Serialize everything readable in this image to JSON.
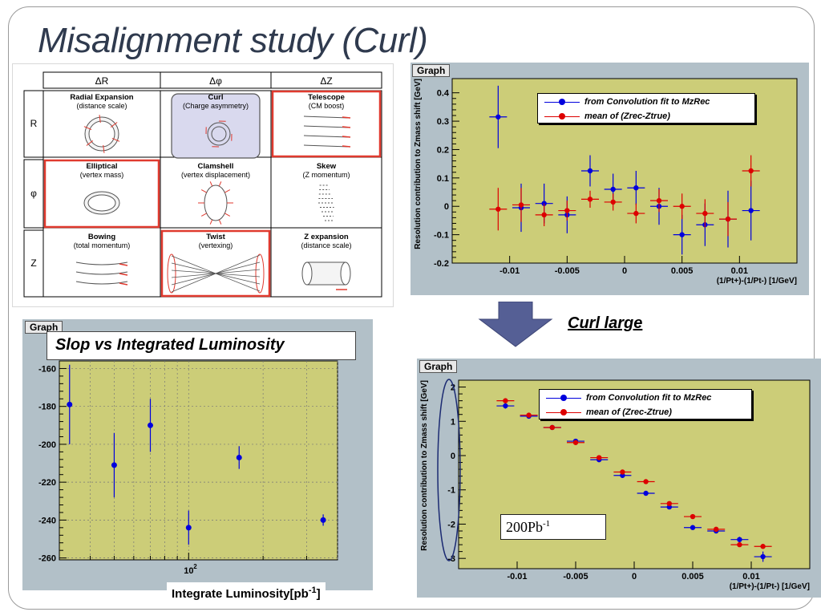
{
  "slide": {
    "title": "Misalignment study (Curl)",
    "curl_large": "Curl large",
    "lumi_caption": "Slop vs Integrated Luminosity",
    "lumi_xlabel": "Integrate Luminosity[pb",
    "lumi_xlabel_sup": "-1",
    "lumi_xlabel_close": "]",
    "pb_label": "200Pb",
    "pb_sup": "-1"
  },
  "matrix": {
    "col_headers": [
      "ΔR",
      "Δφ",
      "ΔZ"
    ],
    "row_headers": [
      "R",
      "φ",
      "Z"
    ],
    "cells": [
      [
        {
          "name": "Radial Expansion",
          "desc": "(distance scale)"
        },
        {
          "name": "Curl",
          "desc": "(Charge asymmetry)"
        },
        {
          "name": "Telescope",
          "desc": "(CM boost)"
        }
      ],
      [
        {
          "name": "Elliptical",
          "desc": "(vertex mass)"
        },
        {
          "name": "Clamshell",
          "desc": "(vertex displacement)"
        },
        {
          "name": "Skew",
          "desc": "(Z momentum)"
        }
      ],
      [
        {
          "name": "Bowing",
          "desc": "(total momentum)"
        },
        {
          "name": "Twist",
          "desc": "(vertexing)"
        },
        {
          "name": "Z expansion",
          "desc": "(distance scale)"
        }
      ]
    ],
    "highlight_color": "#e03a2f",
    "selected_fill": "#d9d9ee"
  },
  "chart_data": [
    {
      "type": "scatter",
      "title": "Graph",
      "ylabel": "Resolution contribution to Zmass shift [GeV]",
      "xlabel": "(1/Pt+)-(1/Pt-) [1/GeV]",
      "xlim": [
        -0.015,
        0.015
      ],
      "ylim": [
        -0.2,
        0.45
      ],
      "xticks": [
        -0.01,
        -0.005,
        0,
        0.005,
        0.01
      ],
      "xtick_labels": [
        "-0.01",
        "-0.005",
        "0",
        "0.005",
        "0.01"
      ],
      "yticks": [
        -0.2,
        -0.1,
        0,
        0.1,
        0.2,
        0.3,
        0.4
      ],
      "ytick_labels": [
        "-0.2",
        "-0.1",
        "0",
        "0.1",
        "0.2",
        "0.3",
        "0.4"
      ],
      "legend_position": "top-right",
      "series": [
        {
          "name": "from Convolution fit to MzRec",
          "color": "#0000dd",
          "x": [
            -0.011,
            -0.009,
            -0.007,
            -0.005,
            -0.003,
            -0.001,
            0.001,
            0.003,
            0.005,
            0.007,
            0.009,
            0.011
          ],
          "y": [
            0.315,
            -0.005,
            0.01,
            -0.03,
            0.125,
            0.06,
            0.065,
            0.0,
            -0.1,
            -0.065,
            -0.045,
            -0.015
          ],
          "yerr": [
            0.11,
            0.085,
            0.07,
            0.065,
            0.055,
            0.055,
            0.06,
            0.065,
            0.07,
            0.075,
            0.1,
            0.105
          ]
        },
        {
          "name": "mean of (Zrec-Ztrue)",
          "color": "#dd0000",
          "x": [
            -0.011,
            -0.009,
            -0.007,
            -0.005,
            -0.003,
            -0.001,
            0.001,
            0.003,
            0.005,
            0.007,
            0.009,
            0.011
          ],
          "y": [
            -0.01,
            0.005,
            -0.03,
            -0.015,
            0.025,
            0.015,
            -0.025,
            0.02,
            0.0,
            -0.025,
            -0.045,
            0.125
          ],
          "yerr": [
            0.075,
            0.06,
            0.04,
            0.035,
            0.03,
            0.03,
            0.035,
            0.04,
            0.045,
            0.05,
            0.06,
            0.055
          ]
        }
      ]
    },
    {
      "type": "scatter",
      "title": "Graph",
      "ylabel": "Resolution contribution to Zmass shift [GeV]",
      "xlabel": "(1/Pt+)-(1/Pt-) [1/GeV]",
      "xlim": [
        -0.015,
        0.015
      ],
      "ylim": [
        -3.3,
        2.2
      ],
      "xticks": [
        -0.01,
        -0.005,
        0,
        0.005,
        0.01
      ],
      "xtick_labels": [
        "-0.01",
        "-0.005",
        "0",
        "0.005",
        "0.01"
      ],
      "yticks": [
        -3,
        -2,
        -1,
        0,
        1,
        2
      ],
      "ytick_labels": [
        "-3",
        "-2",
        "-1",
        "0",
        "1",
        "2"
      ],
      "legend_position": "top-right",
      "series": [
        {
          "name": "from Convolution fit to MzRec",
          "color": "#0000dd",
          "x": [
            -0.011,
            -0.009,
            -0.007,
            -0.005,
            -0.003,
            -0.001,
            0.001,
            0.003,
            0.005,
            0.007,
            0.009,
            0.011
          ],
          "y": [
            1.45,
            1.15,
            0.82,
            0.42,
            -0.12,
            -0.58,
            -1.1,
            -1.5,
            -2.1,
            -2.2,
            -2.45,
            -2.95
          ],
          "yerr": [
            0.08,
            0.06,
            0.05,
            0.05,
            0.05,
            0.05,
            0.05,
            0.06,
            0.06,
            0.07,
            0.08,
            0.15
          ]
        },
        {
          "name": "mean of (Zrec-Ztrue)",
          "color": "#dd0000",
          "x": [
            -0.011,
            -0.009,
            -0.007,
            -0.005,
            -0.003,
            -0.001,
            0.001,
            0.003,
            0.005,
            0.007,
            0.009,
            0.011
          ],
          "y": [
            1.6,
            1.18,
            0.82,
            0.38,
            -0.06,
            -0.48,
            -0.76,
            -1.4,
            -1.78,
            -2.15,
            -2.6,
            -2.65
          ],
          "yerr": [
            0.05,
            0.05,
            0.04,
            0.04,
            0.04,
            0.04,
            0.04,
            0.05,
            0.05,
            0.05,
            0.06,
            0.06
          ]
        }
      ]
    },
    {
      "type": "scatter",
      "title": "Graph",
      "xlabel": "Integrate Luminosity[pb-1]",
      "ylabel": "",
      "xscale": "log",
      "xlim": [
        30,
        400
      ],
      "ylim": [
        -261,
        -156
      ],
      "xticks": [
        100
      ],
      "xtick_labels": [
        "10^2"
      ],
      "yticks": [
        -260,
        -240,
        -220,
        -200,
        -180,
        -160
      ],
      "ytick_labels": [
        "-260",
        "-240",
        "-220",
        "-200",
        "-180",
        "-160"
      ],
      "series": [
        {
          "name": "",
          "color": "#0000dd",
          "x": [
            33,
            50,
            70,
            100,
            160,
            350
          ],
          "y": [
            -179,
            -211,
            -190,
            -244,
            -207,
            -240
          ],
          "yerr": [
            21,
            17,
            14,
            9,
            6,
            3
          ]
        }
      ]
    }
  ]
}
